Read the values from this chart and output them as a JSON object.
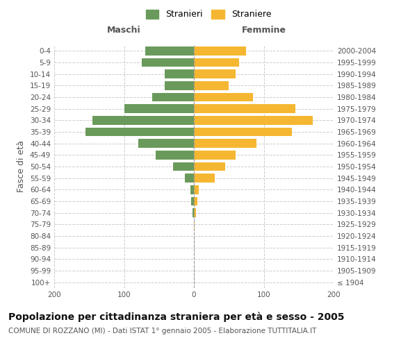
{
  "age_groups": [
    "100+",
    "95-99",
    "90-94",
    "85-89",
    "80-84",
    "75-79",
    "70-74",
    "65-69",
    "60-64",
    "55-59",
    "50-54",
    "45-49",
    "40-44",
    "35-39",
    "30-34",
    "25-29",
    "20-24",
    "15-19",
    "10-14",
    "5-9",
    "0-4"
  ],
  "birth_years": [
    "≤ 1904",
    "1905-1909",
    "1910-1914",
    "1915-1919",
    "1920-1924",
    "1925-1929",
    "1930-1934",
    "1935-1939",
    "1940-1944",
    "1945-1949",
    "1950-1954",
    "1955-1959",
    "1960-1964",
    "1965-1969",
    "1970-1974",
    "1975-1979",
    "1980-1984",
    "1985-1989",
    "1990-1994",
    "1995-1999",
    "2000-2004"
  ],
  "maschi": [
    0,
    0,
    0,
    0,
    0,
    0,
    2,
    4,
    5,
    13,
    30,
    55,
    80,
    155,
    145,
    100,
    60,
    42,
    42,
    75,
    70
  ],
  "femmine": [
    0,
    0,
    0,
    0,
    0,
    1,
    3,
    5,
    7,
    30,
    45,
    60,
    90,
    140,
    170,
    145,
    85,
    50,
    60,
    65,
    75
  ],
  "color_maschi": "#6a9a5b",
  "color_femmine": "#f5b731",
  "title": "Popolazione per cittadinanza straniera per età e sesso - 2005",
  "subtitle": "COMUNE DI ROZZANO (MI) - Dati ISTAT 1° gennaio 2005 - Elaborazione TUTTITALIA.IT",
  "ylabel_left": "Fasce di età",
  "xlabel_maschi": "Maschi",
  "xlabel_femmine": "Femmine",
  "legend_maschi": "Stranieri",
  "legend_femmine": "Straniere",
  "xlim": 200,
  "background_color": "#ffffff",
  "grid_color": "#cccccc",
  "title_fontsize": 10,
  "subtitle_fontsize": 7.5,
  "tick_fontsize": 7.5,
  "label_fontsize": 9
}
